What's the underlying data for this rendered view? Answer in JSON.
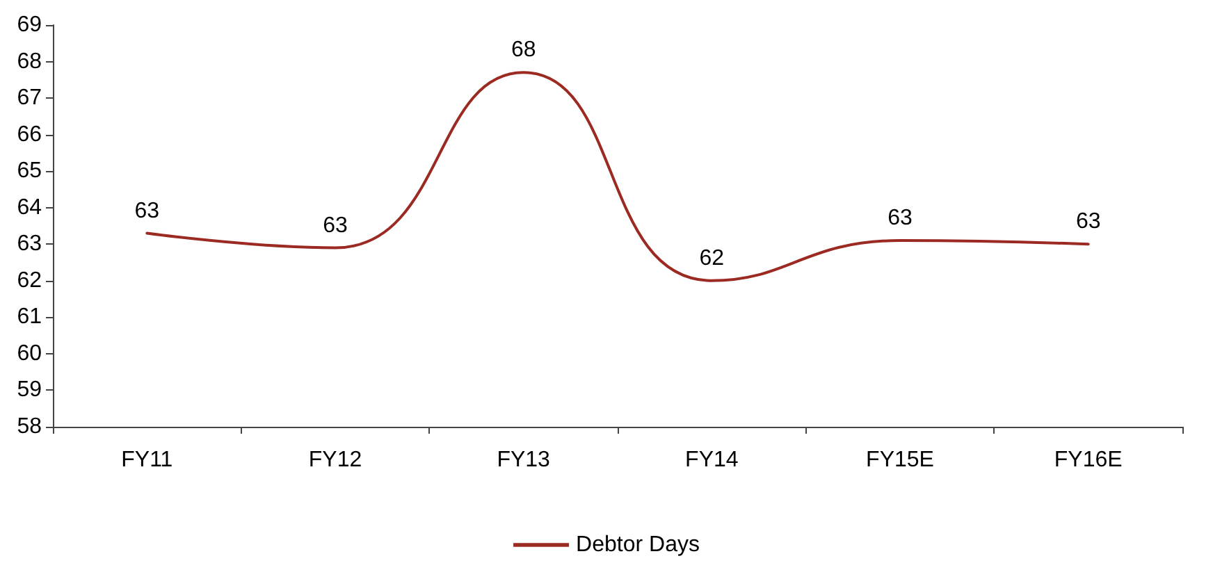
{
  "chart_data": {
    "type": "line",
    "categories": [
      "FY11",
      "FY12",
      "FY13",
      "FY14",
      "FY15E",
      "FY16E"
    ],
    "series": [
      {
        "name": "Debtor Days",
        "color": "#9b2a22",
        "values": [
          63.3,
          62.9,
          67.7,
          62.0,
          63.1,
          63.0
        ],
        "value_labels": [
          "63",
          "63",
          "68",
          "62",
          "63",
          "63"
        ]
      }
    ],
    "ylim": [
      58,
      69
    ],
    "yticks": [
      58,
      59,
      60,
      61,
      62,
      63,
      64,
      65,
      66,
      67,
      68,
      69
    ],
    "grid": false,
    "legend": "bottom",
    "marker": "none",
    "line_style": "solid"
  }
}
